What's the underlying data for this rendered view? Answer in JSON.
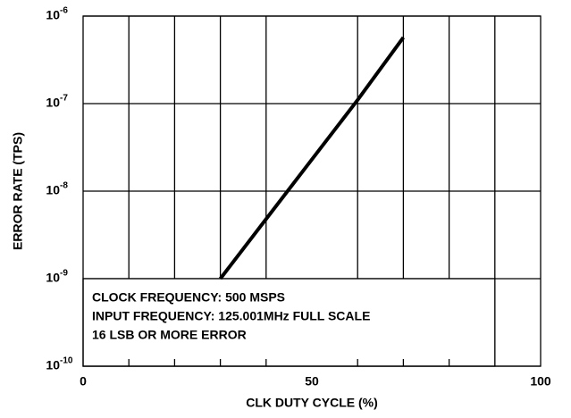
{
  "chart_data": {
    "type": "line",
    "x_label": "CLK DUTY CYCLE (%)",
    "y_label": "ERROR RATE (TPS)",
    "annotations": [
      "CLOCK FREQUENCY: 500 MSPS",
      "INPUT FREQUENCY: 125.001MHz FULL SCALE",
      "16 LSB OR MORE ERROR"
    ],
    "x": [
      30,
      40,
      50,
      60,
      70
    ],
    "series": [
      {
        "name": null,
        "color": "#000000",
        "values": [
          1e-09,
          4.8e-09,
          2.3e-08,
          1.1e-07,
          5.7e-07
        ]
      }
    ],
    "xlim": [
      0,
      100
    ],
    "xticks": [
      0,
      50,
      100
    ],
    "xminor_ticks": [
      10,
      20,
      30,
      40,
      60,
      70,
      80,
      90
    ],
    "ylim": [
      1e-10,
      1e-06
    ],
    "yticks": [
      {
        "value": 1e-10,
        "label": "10",
        "exponent": "-10"
      },
      {
        "value": 1e-09,
        "label": "10",
        "exponent": "-9"
      },
      {
        "value": 1e-08,
        "label": "10",
        "exponent": "-8"
      },
      {
        "value": 1e-07,
        "label": "10",
        "exponent": "-7"
      },
      {
        "value": 1e-06,
        "label": "10",
        "exponent": "-6"
      }
    ],
    "log_y": true,
    "grid": true
  }
}
